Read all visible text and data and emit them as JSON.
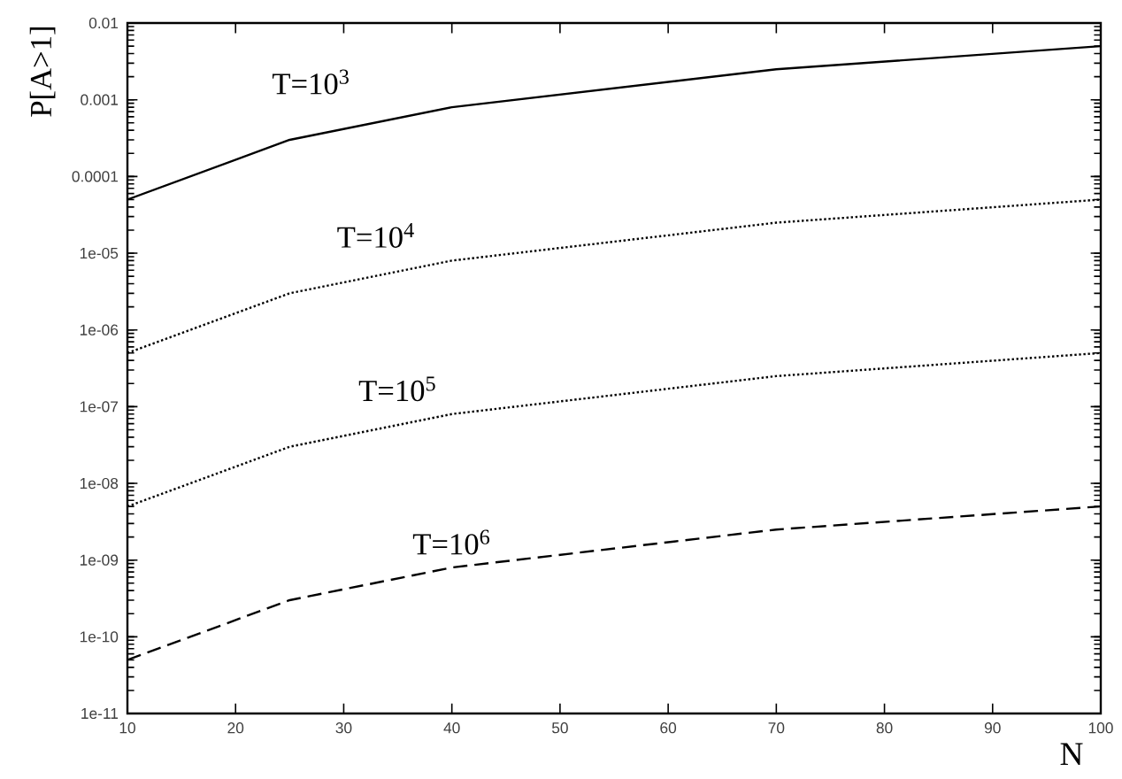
{
  "chart_data": {
    "type": "line",
    "xlabel": "N",
    "ylabel": "P[A>1]",
    "log": "y",
    "grid": false,
    "marker": "none",
    "x": [
      10,
      25,
      40,
      70,
      100
    ],
    "series": [
      {
        "name": "T=10$^{3}$",
        "color": "#000000",
        "line_style": "solid",
        "values": [
          5e-05,
          0.0003,
          0.0008,
          0.0025,
          0.005
        ]
      },
      {
        "name": "T=10$^{4}$",
        "color": "#000000",
        "line_style": "dotted",
        "values": [
          5e-07,
          3e-06,
          8e-06,
          2.5e-05,
          5e-05
        ]
      },
      {
        "name": "T=10$^{5}$",
        "color": "#000000",
        "line_style": "dotted",
        "values": [
          5e-09,
          3e-08,
          8e-08,
          2.5e-07,
          5e-07
        ]
      },
      {
        "name": "T=10$^{6}$",
        "color": "#000000",
        "line_style": "dashed",
        "values": [
          5e-11,
          3e-10,
          8e-10,
          2.5e-09,
          5e-09
        ]
      }
    ],
    "xlim": [
      10,
      100
    ],
    "xticks": [
      10,
      20,
      30,
      40,
      50,
      60,
      70,
      80,
      90,
      100
    ],
    "ylim": [
      1e-11,
      0.01
    ],
    "yticks": [
      {
        "value": 1e-11,
        "label": "1e-11"
      },
      {
        "value": 1e-10,
        "label": "1e-10"
      },
      {
        "value": 1e-09,
        "label": "1e-09"
      },
      {
        "value": 1e-08,
        "label": "1e-08"
      },
      {
        "value": 1e-07,
        "label": "1e-07"
      },
      {
        "value": 1e-06,
        "label": "1e-06"
      },
      {
        "value": 1e-05,
        "label": "1e-05"
      },
      {
        "value": 0.0001,
        "label": "0.0001"
      },
      {
        "value": 0.001,
        "label": "0.001"
      },
      0.01
    ]
  }
}
